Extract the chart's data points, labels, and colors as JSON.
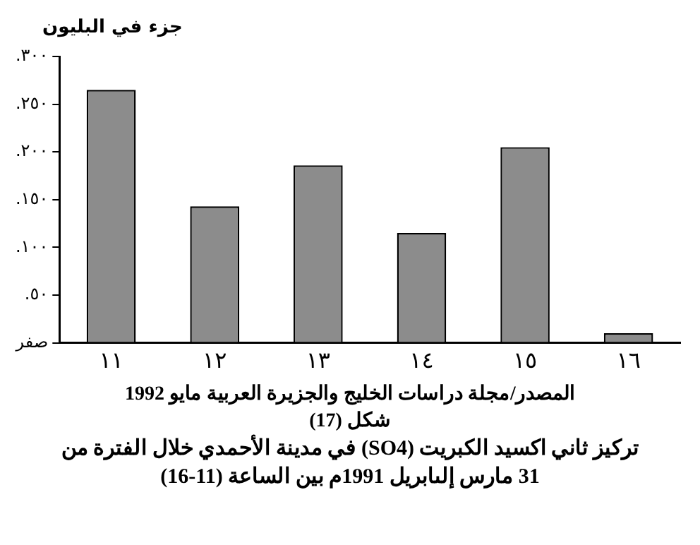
{
  "chart_data": {
    "type": "bar",
    "title": "تركيز ثاني اكسيد الكبريت (SO4) في مدينة الأحمدي خلال الفترة من 31 مارس إلىابريل 1991م بين الساعة (11-16)",
    "ylabel": "جزء في البليون",
    "annotations": [
      "المصدر/مجلة دراسات الخليج والجزيرة العربية مايو 1992",
      "شكل (17)"
    ],
    "categories": [
      "١١",
      "١٢",
      "١٣",
      "١٤",
      "١٥",
      "١٦"
    ],
    "values": [
      265,
      143,
      186,
      115,
      205,
      10
    ],
    "color": "#8c8c8c",
    "ylim": [
      0,
      300
    ],
    "yticks": [
      {
        "value": 0,
        "label": "صفر"
      },
      {
        "value": 50,
        "label": "٥٠."
      },
      {
        "value": 100,
        "label": "١٠٠."
      },
      {
        "value": 150,
        "label": "١٥٠."
      },
      {
        "value": 200,
        "label": "٢٠٠."
      },
      {
        "value": 250,
        "label": "٢٥٠."
      },
      {
        "value": 300,
        "label": "٣٠٠."
      }
    ],
    "grid": false,
    "legend": false
  }
}
